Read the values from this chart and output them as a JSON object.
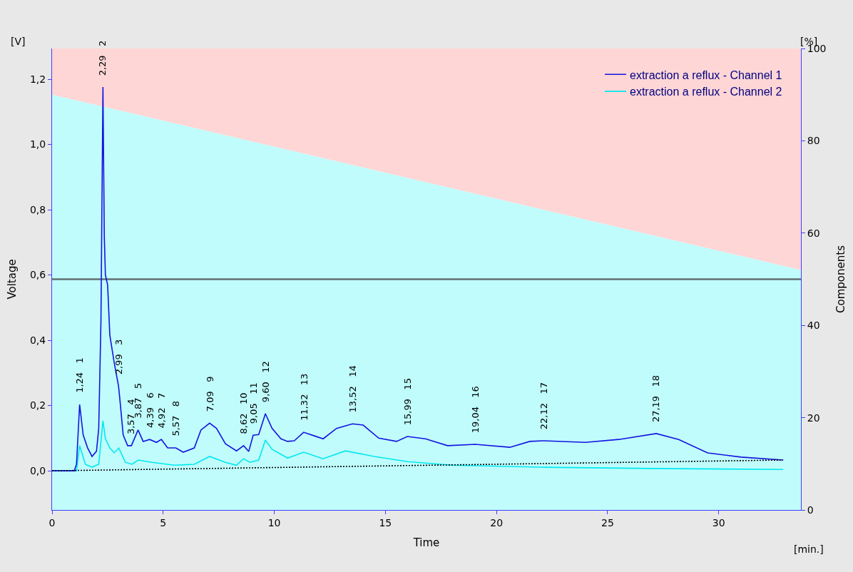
{
  "chart_data": {
    "type": "line",
    "xlabel": "Time",
    "ylabel": "Voltage",
    "y2label": "Components",
    "xlim": [
      0,
      33.7
    ],
    "xticks": [
      0,
      5,
      10,
      15,
      20,
      25,
      30
    ],
    "ylim": [
      -0.12,
      1.294
    ],
    "yticks": [
      {
        "value": 0,
        "label": "0,0"
      },
      {
        "value": 0.2,
        "label": "0,2"
      },
      {
        "value": 0.4,
        "label": "0,4"
      },
      {
        "value": 0.6,
        "label": "0,6"
      },
      {
        "value": 0.8,
        "label": "0,8"
      },
      {
        "value": 1.0,
        "label": "1,0"
      },
      {
        "value": 1.2,
        "label": "1,2"
      }
    ],
    "y2lim": [
      0,
      100
    ],
    "y2ticks": [
      0,
      20,
      40,
      60,
      80,
      100
    ],
    "stacked": true,
    "legend": "top right",
    "series": [
      {
        "type": "area",
        "axis": "y2",
        "color": "#c0fcfc",
        "x": [
          0,
          33.7
        ],
        "values": [
          90,
          52
        ]
      },
      {
        "type": "area",
        "axis": "y2",
        "color": "#ffd6d6",
        "x": [
          0,
          33.7
        ],
        "values": [
          10,
          48
        ]
      },
      {
        "line_style": "dotted",
        "color": "#000000",
        "x": [
          0,
          32.9
        ],
        "values": [
          0,
          0.033
        ]
      },
      {
        "name": "extraction a reflux - Channel 2",
        "color": "#00e8f0",
        "x": [
          0,
          1.1,
          1.24,
          1.5,
          1.8,
          2.1,
          2.29,
          2.4,
          2.6,
          2.8,
          3.0,
          3.3,
          3.6,
          3.87,
          4.5,
          5.5,
          6.4,
          7.09,
          7.8,
          8.3,
          8.62,
          8.9,
          9.3,
          9.6,
          9.9,
          10.6,
          11.32,
          12.2,
          13.2,
          14.5,
          16,
          18,
          22,
          27,
          32.9
        ],
        "values": [
          0,
          0,
          0.077,
          0.02,
          0.011,
          0.02,
          0.153,
          0.098,
          0.07,
          0.055,
          0.07,
          0.026,
          0.02,
          0.033,
          0.026,
          0.017,
          0.02,
          0.044,
          0.026,
          0.017,
          0.037,
          0.026,
          0.033,
          0.094,
          0.066,
          0.039,
          0.057,
          0.037,
          0.061,
          0.044,
          0.028,
          0.017,
          0.011,
          0.007,
          0.004
        ]
      },
      {
        "name": "extraction a reflux - Channel 1",
        "color": "#1414e0",
        "x": [
          0,
          1.0,
          1.1,
          1.24,
          1.4,
          1.6,
          1.8,
          2.0,
          2.1,
          2.2,
          2.29,
          2.35,
          2.4,
          2.5,
          2.6,
          2.8,
          2.99,
          3.05,
          3.2,
          3.4,
          3.57,
          3.87,
          4.1,
          4.39,
          4.7,
          4.92,
          5.2,
          5.57,
          5.9,
          6.4,
          6.7,
          7.09,
          7.4,
          7.8,
          8.3,
          8.62,
          8.85,
          9.05,
          9.3,
          9.6,
          9.9,
          10.3,
          10.6,
          10.9,
          11.32,
          11.8,
          12.2,
          12.8,
          13.52,
          14.0,
          14.7,
          15.5,
          15.99,
          16.8,
          17.8,
          19.04,
          20.6,
          21.5,
          22.12,
          24,
          25.5,
          27.19,
          28.2,
          29.5,
          31,
          32.9
        ],
        "values": [
          0,
          0,
          0.02,
          0.203,
          0.11,
          0.07,
          0.044,
          0.06,
          0.13,
          0.46,
          1.176,
          0.72,
          0.6,
          0.57,
          0.415,
          0.33,
          0.26,
          0.22,
          0.11,
          0.077,
          0.077,
          0.125,
          0.09,
          0.096,
          0.087,
          0.096,
          0.07,
          0.07,
          0.057,
          0.07,
          0.125,
          0.146,
          0.13,
          0.083,
          0.061,
          0.077,
          0.059,
          0.109,
          0.111,
          0.175,
          0.13,
          0.098,
          0.09,
          0.092,
          0.118,
          0.107,
          0.098,
          0.13,
          0.144,
          0.14,
          0.1,
          0.09,
          0.105,
          0.098,
          0.077,
          0.081,
          0.072,
          0.09,
          0.092,
          0.087,
          0.096,
          0.114,
          0.096,
          0.055,
          0.042,
          0.033
        ]
      }
    ],
    "ref_lines": [
      {
        "axis": "y2",
        "value": 50,
        "color": "#607070"
      }
    ],
    "annotations": [
      "[V]",
      "[%]",
      "[min.]",
      {
        "text": "1,24   1",
        "x": 1.24,
        "y": 0.203
      },
      {
        "text": "2,29   2",
        "x": 2.29,
        "y": 1.176
      },
      {
        "text": "2,99   3",
        "x": 2.99,
        "y": 0.26
      },
      {
        "text": "3,57   4",
        "x": 3.57,
        "y": 0.077
      },
      {
        "text": "3,87   5",
        "x": 3.87,
        "y": 0.125
      },
      {
        "text": "4,39   6",
        "x": 4.39,
        "y": 0.096
      },
      {
        "text": "4,92   7",
        "x": 4.92,
        "y": 0.096
      },
      {
        "text": "5,57   8",
        "x": 5.57,
        "y": 0.07
      },
      {
        "text": "7,09   9",
        "x": 7.09,
        "y": 0.146
      },
      {
        "text": "8,62   10",
        "x": 8.62,
        "y": 0.077
      },
      {
        "text": "9,05   11",
        "x": 9.05,
        "y": 0.109
      },
      {
        "text": "9,60   12",
        "x": 9.6,
        "y": 0.175
      },
      {
        "text": "11,32   13",
        "x": 11.32,
        "y": 0.118
      },
      {
        "text": "13,52   14",
        "x": 13.52,
        "y": 0.144
      },
      {
        "text": "15,99   15",
        "x": 15.99,
        "y": 0.105
      },
      {
        "text": "19,04   16",
        "x": 19.04,
        "y": 0.081
      },
      {
        "text": "22,12   17",
        "x": 22.12,
        "y": 0.092
      },
      {
        "text": "27,19   18",
        "x": 27.19,
        "y": 0.114
      }
    ]
  }
}
